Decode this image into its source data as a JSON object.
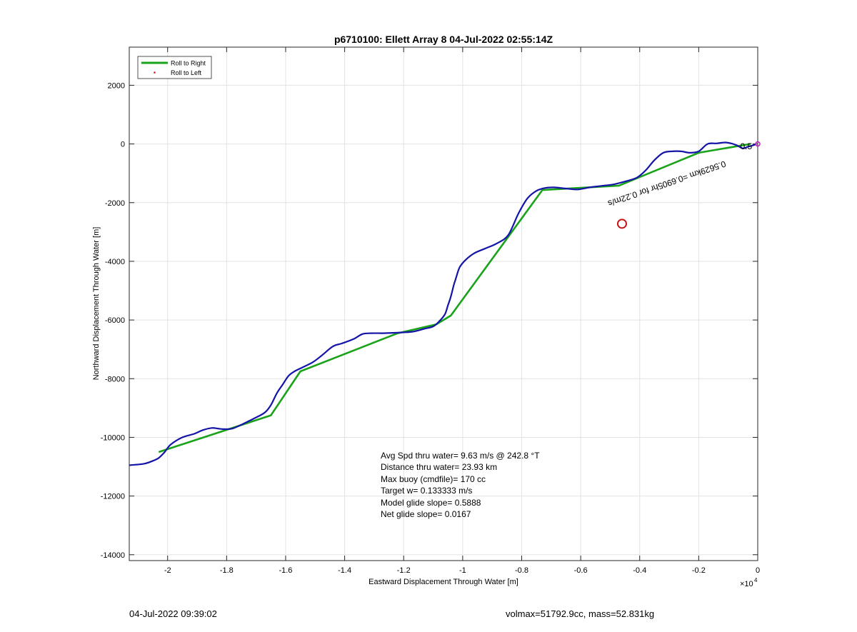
{
  "chart_data": {
    "type": "line",
    "title": "p6710100: Ellett Array 8 04-Jul-2022 02:55:14Z",
    "xlabel": "Eastward Displacement Through Water [m]",
    "ylabel": "Northward Displacement Through Water [m]",
    "x_multiplier_label": "×10",
    "x_multiplier_exponent": "4",
    "xlim": [
      -21300,
      0
    ],
    "ylim": [
      -14200,
      3300
    ],
    "xticks": [
      -20000,
      -18000,
      -16000,
      -14000,
      -12000,
      -10000,
      -8000,
      -6000,
      -4000,
      -2000,
      0
    ],
    "xtick_labels": [
      "-2",
      "-1.8",
      "-1.6",
      "-1.4",
      "-1.2",
      "-1",
      "-0.8",
      "-0.6",
      "-0.4",
      "-0.2",
      "0"
    ],
    "yticks": [
      2000,
      0,
      -2000,
      -4000,
      -6000,
      -8000,
      -10000,
      -12000,
      -14000
    ],
    "ytick_labels": [
      "2000",
      "0",
      "-2000",
      "-4000",
      "-6000",
      "-8000",
      "-10000",
      "-12000",
      "-14000"
    ],
    "grid": true,
    "legend_placement": "top-left",
    "legend": [
      {
        "label": "Roll to Right",
        "color": "#1aa31a",
        "style": "line"
      },
      {
        "label": "Roll to Left",
        "color": "#d21a1a",
        "style": "dot"
      }
    ],
    "series": [
      {
        "name": "Roll to Right",
        "color": "#1aa31a",
        "x": [
          -250,
          -2000,
          -4700,
          -7300,
          -10400,
          -10900,
          -12200,
          -15500,
          -16500,
          -20300
        ],
        "y": [
          0,
          -300,
          -1420,
          -1570,
          -5850,
          -6150,
          -6450,
          -7750,
          -9250,
          -10500
        ]
      },
      {
        "name": "",
        "color": "#1414a8",
        "x": [
          -21300,
          -20800,
          -20500,
          -20300,
          -20100,
          -19900,
          -19500,
          -19100,
          -18800,
          -18500,
          -18300,
          -18100,
          -17800,
          -17400,
          -17000,
          -16700,
          -16500,
          -16300,
          -16100,
          -15900,
          -15700,
          -15500,
          -15100,
          -14800,
          -14400,
          -14100,
          -13700,
          -13400,
          -13100,
          -12700,
          -12200,
          -11700,
          -11300,
          -11000,
          -10800,
          -10600,
          -10500,
          -10400,
          -10300,
          -10250,
          -10200,
          -10100,
          -9900,
          -9600,
          -9200,
          -8900,
          -8600,
          -8450,
          -8300,
          -8100,
          -7800,
          -7500,
          -7200,
          -6900,
          -6500,
          -6100,
          -5700,
          -5300,
          -4900,
          -4500,
          -4100,
          -3800,
          -3500,
          -3200,
          -2900,
          -2600,
          -2300,
          -2000,
          -1700,
          -1400,
          -1100,
          -900,
          -700,
          -500,
          -350,
          -200,
          -50
        ],
        "y": [
          -10950,
          -10900,
          -10800,
          -10700,
          -10500,
          -10250,
          -10000,
          -9880,
          -9750,
          -9680,
          -9700,
          -9720,
          -9700,
          -9520,
          -9320,
          -9150,
          -8900,
          -8500,
          -8200,
          -7900,
          -7750,
          -7650,
          -7450,
          -7230,
          -6900,
          -6800,
          -6650,
          -6480,
          -6450,
          -6450,
          -6430,
          -6400,
          -6300,
          -6220,
          -6050,
          -5800,
          -5500,
          -5200,
          -4800,
          -4650,
          -4480,
          -4200,
          -3950,
          -3720,
          -3550,
          -3420,
          -3250,
          -3100,
          -2800,
          -2350,
          -1850,
          -1600,
          -1500,
          -1480,
          -1520,
          -1550,
          -1480,
          -1430,
          -1380,
          -1280,
          -1150,
          -900,
          -550,
          -300,
          -250,
          -250,
          -300,
          -250,
          0,
          20,
          50,
          20,
          -50,
          -150,
          -100,
          -60,
          -10
        ]
      }
    ],
    "annotation_rotated": "0.5629km =0.6905hr for 0.22m/s",
    "annotation_start_label": "0.5",
    "annotation_x": -5100,
    "annotation_y": -1950,
    "marker": {
      "x": -4600,
      "y": -2720,
      "color": "#cc1111"
    },
    "stats_lines": [
      "Avg Spd thru water=  9.63 m/s @ 242.8 °T",
      "Distance thru water= 23.93 km",
      "Max buoy (cmdfile)= 170 cc",
      "Target w= 0.133333 m/s",
      "Model glide slope= 0.5888",
      "Net glide slope= 0.0167"
    ]
  },
  "footer": {
    "left": "04-Jul-2022 09:39:02",
    "right": "volmax=51792.9cc, mass=52.831kg"
  }
}
